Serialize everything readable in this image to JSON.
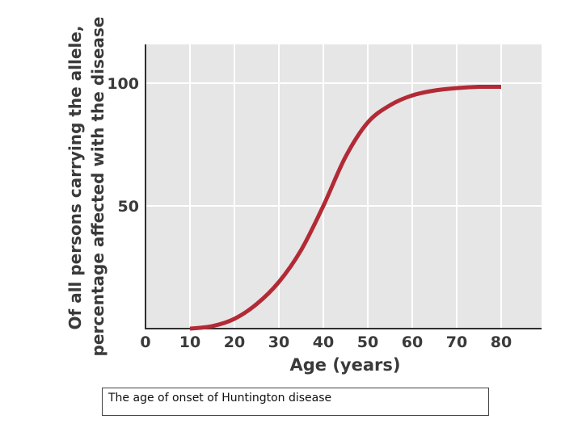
{
  "chart_data": {
    "type": "line",
    "title": "",
    "xlabel": "Age (years)",
    "ylabel_lines": [
      "Of all persons carrying the allele,",
      "percentage affected with the disease"
    ],
    "xlim": [
      0,
      90
    ],
    "ylim": [
      0,
      117
    ],
    "x_ticks": [
      0,
      10,
      20,
      30,
      40,
      50,
      60,
      70,
      80
    ],
    "y_ticks": [
      50,
      100
    ],
    "grid": true,
    "series": [
      {
        "color": "#b22a35",
        "x": [
          10,
          15,
          20,
          25,
          30,
          35,
          40,
          45,
          50,
          55,
          60,
          65,
          70,
          75,
          80
        ],
        "y": [
          0,
          1,
          4,
          10,
          19,
          32,
          50,
          70,
          84,
          91,
          95,
          97,
          98,
          98.5,
          98.5
        ]
      }
    ]
  },
  "colors": {
    "plot_background": "#e6e6e6",
    "grid": "#ffffff",
    "axis": "#2f2f2f",
    "curve": "#b22a35"
  },
  "caption": "The age of onset of Huntington disease"
}
